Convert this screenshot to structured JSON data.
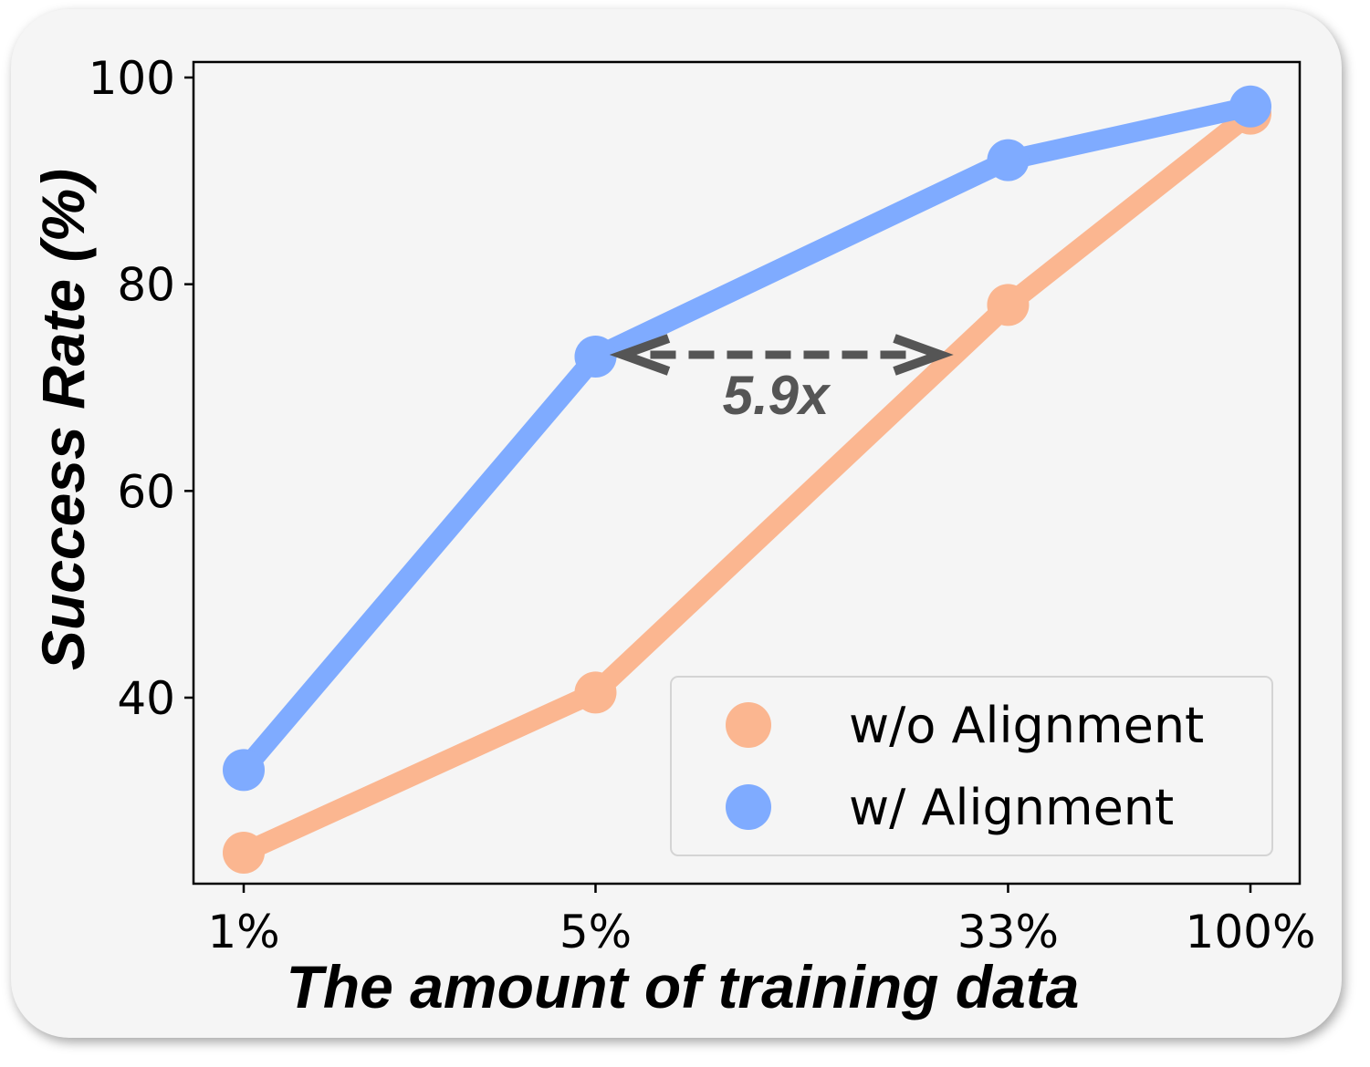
{
  "chart_data": {
    "type": "line",
    "categories": [
      "1%",
      "5%",
      "33%",
      "100%"
    ],
    "x": [
      1,
      5,
      33,
      100
    ],
    "x_scale": "log",
    "series": [
      {
        "name": "w/o Alignment",
        "values": [
          25,
          40.5,
          78,
          96.5
        ],
        "color": "#fbb690"
      },
      {
        "name": "w/ Alignment",
        "values": [
          33,
          73,
          92,
          97.2
        ],
        "color": "#7fabff"
      }
    ],
    "xlabel": "The amount of training data",
    "ylabel": "Success Rate (%)",
    "yticks": [
      40,
      60,
      80,
      100
    ],
    "ylim": [
      22,
      101.5
    ],
    "grid": false,
    "legend_position": "lower-right",
    "annotation": {
      "text": "5.9x",
      "from_category": "5%",
      "to_value": 73,
      "arrow_color": "#555555"
    }
  }
}
